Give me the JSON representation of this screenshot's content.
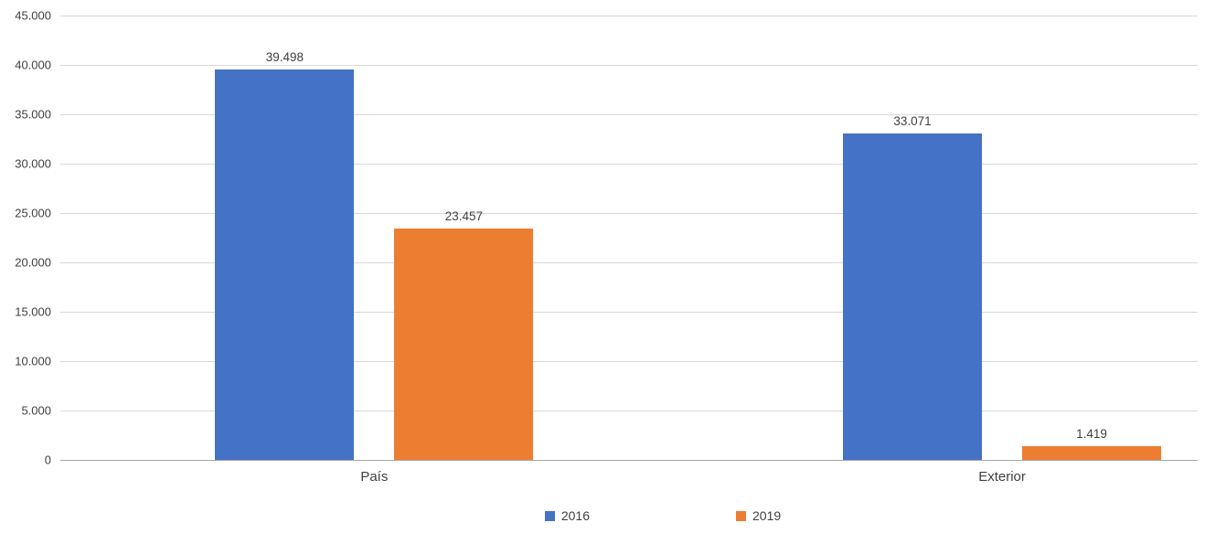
{
  "chart_data": {
    "type": "bar",
    "title": "",
    "categories": [
      "País",
      "Exterior"
    ],
    "series": [
      {
        "name": "2016",
        "color": "#4472C4",
        "values": [
          39498,
          33071
        ],
        "labels": [
          "39.498",
          "33.071"
        ]
      },
      {
        "name": "2019",
        "color": "#ED7D31",
        "values": [
          23457,
          1419
        ],
        "labels": [
          "23.457",
          "1.419"
        ]
      }
    ],
    "y_ticks": [
      "45.000",
      "40.000",
      "35.000",
      "30.000",
      "25.000",
      "20.000",
      "15.000",
      "10.000",
      "5.000",
      "0"
    ],
    "ylim": [
      0,
      45000
    ],
    "grid": true,
    "legend_position": "bottom",
    "layout": {
      "group_centers_pct": [
        27.6,
        82.8
      ]
    }
  }
}
